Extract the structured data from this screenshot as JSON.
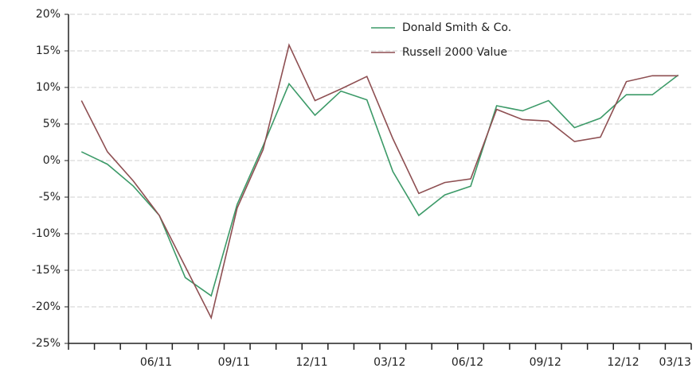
{
  "chart_data": {
    "type": "line",
    "categories": [
      null,
      null,
      null,
      "06/11",
      null,
      null,
      "09/11",
      null,
      null,
      "12/11",
      null,
      null,
      "03/12",
      null,
      null,
      "06/12",
      null,
      null,
      "09/12",
      null,
      null,
      "12/12",
      null,
      "03/13"
    ],
    "series": [
      {
        "name": "Donald Smith & Co.",
        "color": "#3c9a68",
        "values": [
          1.2,
          -0.5,
          -3.5,
          -7.5,
          -16,
          -18.5,
          -6,
          2,
          10.5,
          6.2,
          9.5,
          8.3,
          -1.5,
          -7.5,
          -4.7,
          -3.5,
          7.5,
          6.8,
          8.2,
          4.5,
          5.8,
          9,
          9,
          11.7
        ]
      },
      {
        "name": "Russell 2000 Value",
        "color": "#8e4f52",
        "values": [
          8.2,
          1.2,
          -2.8,
          -7.5,
          -14.5,
          -21.5,
          -6.5,
          1.5,
          15.8,
          8.2,
          9.8,
          11.5,
          3,
          -4.5,
          -3,
          -2.5,
          7,
          5.6,
          5.4,
          2.6,
          3.2,
          10.8,
          11.6,
          11.6
        ]
      }
    ],
    "ylim": [
      -25,
      20
    ],
    "yticks": [
      {
        "value": -25,
        "label": "-25%"
      },
      {
        "value": -20,
        "label": "-20%"
      },
      {
        "value": -15,
        "label": "-15%"
      },
      {
        "value": -10,
        "label": "-10%"
      },
      {
        "value": -5,
        "label": "-5%"
      },
      {
        "value": 0,
        "label": "0%"
      },
      {
        "value": 5,
        "label": "5%"
      },
      {
        "value": 10,
        "label": "10%"
      },
      {
        "value": 15,
        "label": "15%"
      },
      {
        "value": 20,
        "label": "20%"
      }
    ],
    "grid": true,
    "legend": "top-right"
  }
}
